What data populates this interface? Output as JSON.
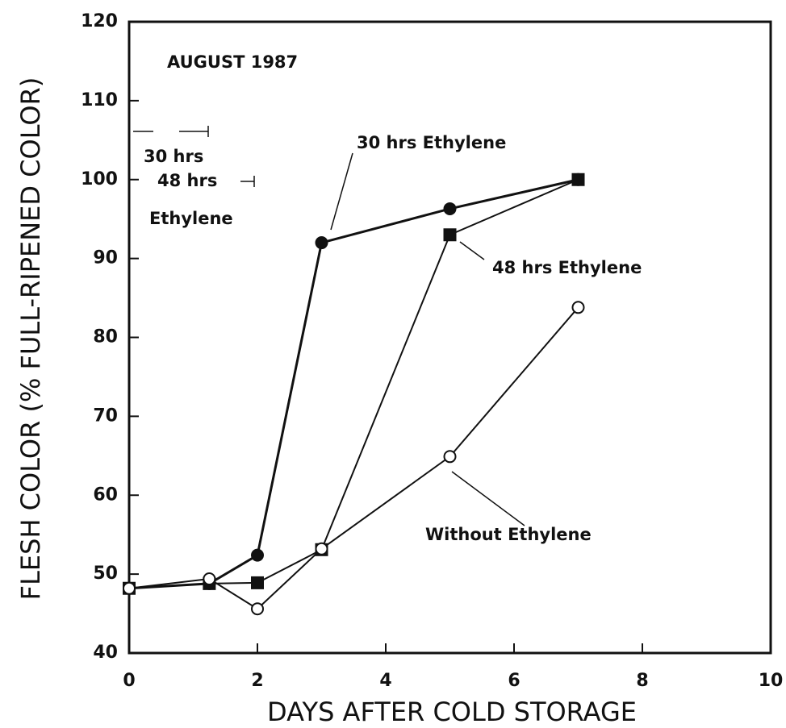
{
  "chart_data": {
    "type": "line",
    "xlabel": "DAYS AFTER COLD STORAGE",
    "ylabel": "FLESH COLOR (% FULL-RIPENED COLOR)",
    "annotations": [
      "AUGUST 1987",
      "30 hrs Ethylene",
      "48 hrs Ethylene",
      "Without Ethylene",
      "30 hrs",
      "48 hrs",
      "Ethylene"
    ],
    "series": [
      {
        "name": "30 hrs Ethylene",
        "color": "#111111",
        "marker": "circle",
        "marker_fill": "#111111",
        "x": [
          0,
          1.25,
          2,
          3,
          5,
          7
        ],
        "values": [
          48.2,
          48.8,
          52.4,
          92,
          96.3,
          100
        ]
      },
      {
        "name": "48 hrs Ethylene",
        "color": "#111111",
        "marker": "square",
        "marker_fill": "#111111",
        "x": [
          0,
          1.25,
          2,
          3,
          5,
          7
        ],
        "values": [
          48.2,
          48.8,
          48.9,
          53.1,
          93,
          100
        ]
      },
      {
        "name": "Without Ethylene",
        "color": "#111111",
        "marker": "circle",
        "marker_fill": "#ffffff",
        "x": [
          0,
          1.25,
          2,
          3,
          5,
          7
        ],
        "values": [
          48.2,
          49.4,
          45.6,
          53.2,
          64.9,
          83.8
        ]
      }
    ],
    "xlim": [
      0,
      10
    ],
    "xticks": [
      0,
      2,
      4,
      6,
      8,
      10
    ],
    "ylim": [
      40,
      120
    ],
    "yticks": [
      40,
      50,
      60,
      70,
      80,
      90,
      100,
      110,
      120
    ]
  }
}
